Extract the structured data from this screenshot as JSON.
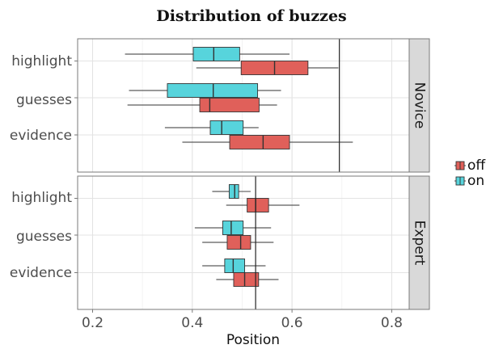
{
  "chart_data": {
    "type": "boxplot",
    "title": "Distribution of buzzes",
    "xlabel": "Position",
    "ylabel": "",
    "xlim": [
      0.17,
      0.835
    ],
    "xticks": [
      0.2,
      0.4,
      0.6,
      0.8
    ],
    "xtick_labels": [
      "0.2",
      "0.4",
      "0.6",
      "0.8"
    ],
    "categories": [
      "highlight",
      "guesses",
      "evidence"
    ],
    "legend": {
      "position": "right",
      "entries": [
        {
          "name": "off",
          "color": "#e0605a"
        },
        {
          "name": "on",
          "color": "#57d4dc"
        }
      ]
    },
    "grid": true,
    "panels": [
      {
        "name": "Novice",
        "vline": 0.695,
        "boxes": [
          {
            "category": "highlight",
            "group": "on",
            "whislo": 0.265,
            "q1": 0.402,
            "med": 0.443,
            "q3": 0.495,
            "whishi": 0.595
          },
          {
            "category": "highlight",
            "group": "off",
            "whislo": 0.408,
            "q1": 0.498,
            "med": 0.565,
            "q3": 0.632,
            "whishi": 0.693
          },
          {
            "category": "guesses",
            "group": "on",
            "whislo": 0.273,
            "q1": 0.35,
            "med": 0.442,
            "q3": 0.531,
            "whishi": 0.578
          },
          {
            "category": "guesses",
            "group": "off",
            "whislo": 0.27,
            "q1": 0.415,
            "med": 0.435,
            "q3": 0.534,
            "whishi": 0.57
          },
          {
            "category": "evidence",
            "group": "on",
            "whislo": 0.345,
            "q1": 0.436,
            "med": 0.459,
            "q3": 0.502,
            "whishi": 0.533
          },
          {
            "category": "evidence",
            "group": "off",
            "whislo": 0.38,
            "q1": 0.475,
            "med": 0.542,
            "q3": 0.595,
            "whishi": 0.722
          }
        ]
      },
      {
        "name": "Expert",
        "vline": 0.527,
        "boxes": [
          {
            "category": "highlight",
            "group": "on",
            "whislo": 0.44,
            "q1": 0.474,
            "med": 0.485,
            "q3": 0.493,
            "whishi": 0.517
          },
          {
            "category": "highlight",
            "group": "off",
            "whislo": 0.468,
            "q1": 0.51,
            "med": 0.527,
            "q3": 0.553,
            "whishi": 0.615
          },
          {
            "category": "guesses",
            "group": "on",
            "whislo": 0.405,
            "q1": 0.461,
            "med": 0.478,
            "q3": 0.502,
            "whishi": 0.558
          },
          {
            "category": "guesses",
            "group": "off",
            "whislo": 0.42,
            "q1": 0.47,
            "med": 0.497,
            "q3": 0.517,
            "whishi": 0.563
          },
          {
            "category": "evidence",
            "group": "on",
            "whislo": 0.42,
            "q1": 0.465,
            "med": 0.482,
            "q3": 0.505,
            "whishi": 0.547
          },
          {
            "category": "evidence",
            "group": "off",
            "whislo": 0.448,
            "q1": 0.483,
            "med": 0.505,
            "q3": 0.533,
            "whishi": 0.573
          }
        ]
      }
    ]
  }
}
